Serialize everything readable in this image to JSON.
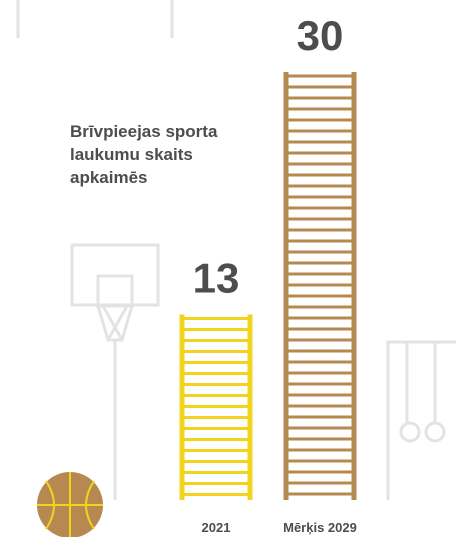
{
  "chart_data": {
    "type": "bar",
    "title": "Brīvpieejas sporta laukumu skaits apkaimēs",
    "categories": [
      "2021",
      "Mērķis 2029"
    ],
    "values": [
      13,
      30
    ],
    "colors": [
      "#f2d41f",
      "#b5894f"
    ]
  }
}
